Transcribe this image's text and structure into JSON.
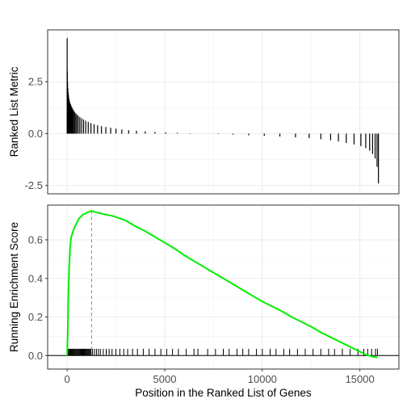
{
  "chart_data": [
    {
      "type": "bar",
      "panel": "ranked-list-metric",
      "xlabel": "",
      "ylabel": "Ranked List Metric",
      "xlim": [
        -1000,
        17000
      ],
      "ylim": [
        -2.9,
        5.0
      ],
      "yticks": [
        -2.5,
        0.0,
        2.5
      ],
      "ytick_labels": [
        "-2.5",
        "0.0",
        "2.5"
      ],
      "grid": true,
      "bar_color": "#000000",
      "series": [
        {
          "x": [
            0,
            10,
            20,
            35,
            50,
            70,
            90,
            110,
            140,
            170,
            200,
            240,
            280,
            330,
            380,
            440,
            500,
            570,
            650,
            740,
            840,
            950,
            1080,
            1220,
            1380,
            1560,
            1760,
            1980,
            2230,
            2500,
            2800,
            3150,
            3550,
            4000,
            4500,
            5050,
            5650,
            6300,
            7000,
            7750,
            8500,
            9300,
            10100,
            10900,
            11700,
            12400,
            13000,
            13500,
            13900,
            14300,
            14700,
            15050,
            15300,
            15500,
            15650,
            15780,
            15880,
            15950
          ],
          "values": [
            4.6,
            3.0,
            2.5,
            2.2,
            2.0,
            1.85,
            1.7,
            1.6,
            1.5,
            1.42,
            1.35,
            1.28,
            1.2,
            1.12,
            1.05,
            0.98,
            0.92,
            0.86,
            0.8,
            0.74,
            0.68,
            0.62,
            0.56,
            0.5,
            0.45,
            0.4,
            0.36,
            0.32,
            0.28,
            0.24,
            0.2,
            0.17,
            0.14,
            0.11,
            0.08,
            0.06,
            0.04,
            0.02,
            0.0,
            -0.02,
            -0.05,
            -0.08,
            -0.11,
            -0.14,
            -0.18,
            -0.22,
            -0.27,
            -0.32,
            -0.38,
            -0.45,
            -0.52,
            -0.6,
            -0.7,
            -0.82,
            -0.98,
            -1.2,
            -1.6,
            -2.4
          ]
        }
      ]
    },
    {
      "type": "line",
      "panel": "running-enrichment-score",
      "xlabel": "Position in the Ranked List of Genes",
      "ylabel": "Running Enrichment Score",
      "xlim": [
        -1000,
        17000
      ],
      "ylim": [
        -0.07,
        0.78
      ],
      "xticks": [
        0,
        5000,
        10000,
        15000
      ],
      "xtick_labels": [
        "0",
        "5000",
        "10000",
        "15000"
      ],
      "yticks": [
        0.0,
        0.2,
        0.4,
        0.6
      ],
      "ytick_labels": [
        "0.0",
        "0.2",
        "0.4",
        "0.6"
      ],
      "grid": true,
      "line_color": "#00ee00",
      "peak_marker": {
        "x": 1250,
        "color": "#e06060",
        "style": "dashed"
      },
      "zero_line": 0,
      "series": [
        {
          "x": [
            0,
            30,
            60,
            100,
            150,
            200,
            260,
            320,
            400,
            500,
            600,
            700,
            800,
            900,
            1000,
            1100,
            1200,
            1250,
            1400,
            1600,
            1800,
            2000,
            2300,
            2600,
            3000,
            3500,
            4000,
            4500,
            5000,
            5500,
            6000,
            6500,
            7000,
            7500,
            8000,
            8500,
            9000,
            9500,
            10000,
            10500,
            11000,
            11500,
            12000,
            12500,
            13000,
            13500,
            14000,
            14500,
            15000,
            15300,
            15600,
            15900
          ],
          "values": [
            0.0,
            0.12,
            0.3,
            0.45,
            0.56,
            0.61,
            0.63,
            0.65,
            0.67,
            0.69,
            0.71,
            0.72,
            0.73,
            0.735,
            0.74,
            0.745,
            0.748,
            0.75,
            0.745,
            0.74,
            0.735,
            0.73,
            0.725,
            0.715,
            0.7,
            0.67,
            0.645,
            0.615,
            0.585,
            0.555,
            0.52,
            0.49,
            0.46,
            0.43,
            0.4,
            0.37,
            0.34,
            0.31,
            0.28,
            0.255,
            0.23,
            0.2,
            0.175,
            0.15,
            0.12,
            0.095,
            0.07,
            0.045,
            0.02,
            0.005,
            -0.005,
            -0.01
          ]
        }
      ],
      "gene_hits": [
        20,
        60,
        100,
        140,
        180,
        220,
        260,
        300,
        340,
        380,
        420,
        460,
        500,
        540,
        580,
        620,
        660,
        700,
        740,
        780,
        820,
        860,
        900,
        940,
        980,
        1020,
        1060,
        1100,
        1140,
        1180,
        1220,
        1300,
        1400,
        1500,
        1600,
        1700,
        1850,
        2000,
        2150,
        2300,
        2500,
        2700,
        2900,
        3100,
        3350,
        3600,
        3900,
        4200,
        4500,
        4800,
        5100,
        5400,
        5700,
        6100,
        6500,
        6700,
        7200,
        7600,
        8000,
        8300,
        8700,
        9000,
        9300,
        9700,
        10000,
        10400,
        10700,
        11100,
        11400,
        11800,
        12200,
        12600,
        13000,
        13400,
        13700,
        14100,
        14500,
        14900,
        15200,
        15400,
        15600,
        15800,
        15900
      ]
    }
  ]
}
